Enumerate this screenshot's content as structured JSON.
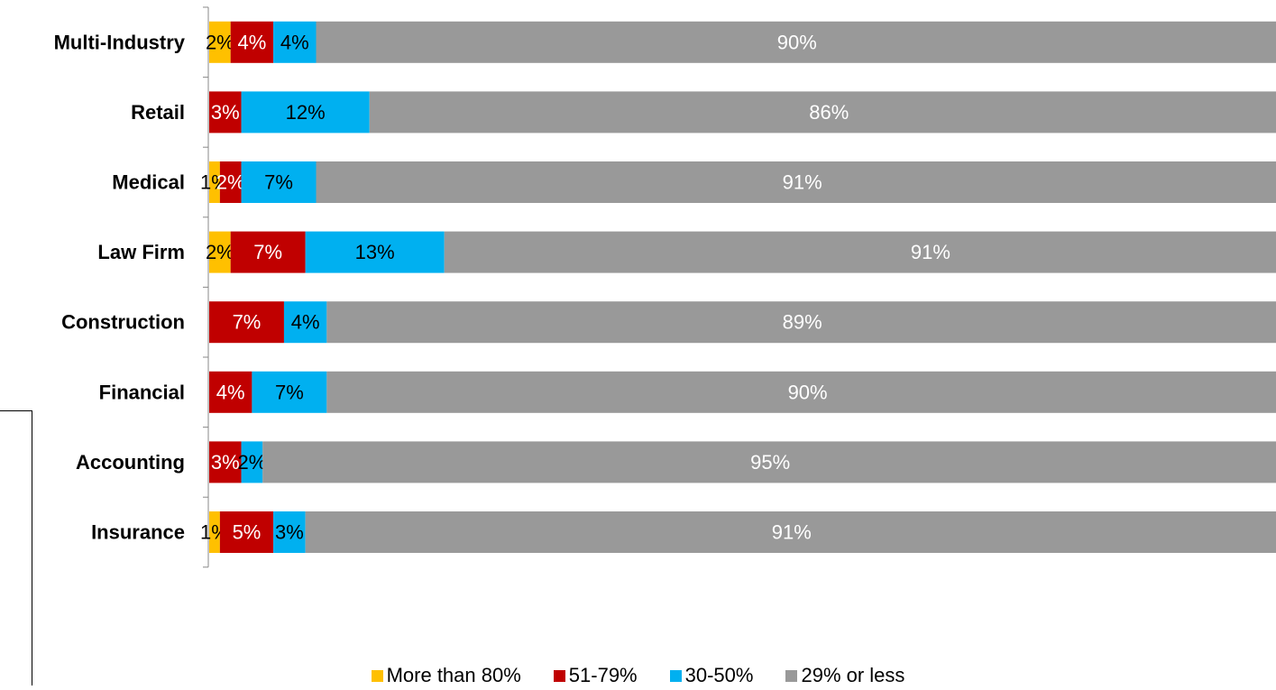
{
  "chart_data": {
    "type": "bar",
    "orientation": "horizontal",
    "stacked": true,
    "categories": [
      "Multi-Industry",
      "Retail",
      "Medical",
      "Law Firm",
      "Construction",
      "Financial",
      "Accounting",
      "Insurance"
    ],
    "series": [
      {
        "name": "More than 80%",
        "color": "#FFC000",
        "values": [
          2,
          0,
          1,
          2,
          0,
          0,
          0,
          1
        ],
        "labels": [
          "2%",
          "",
          "1%",
          "2%",
          "",
          "",
          "",
          "1%"
        ]
      },
      {
        "name": "51-79%",
        "color": "#C00000",
        "values": [
          4,
          3,
          2,
          7,
          7,
          4,
          3,
          5
        ],
        "labels": [
          "4%",
          "3%",
          "2%",
          "7%",
          "7%",
          "4%",
          "3%",
          "5%"
        ]
      },
      {
        "name": "30-50%",
        "color": "#00B0F0",
        "values": [
          4,
          12,
          7,
          13,
          4,
          7,
          2,
          3
        ],
        "labels": [
          "4%",
          "12%",
          "7%",
          "13%",
          "4%",
          "7%",
          "2%",
          "3%"
        ]
      },
      {
        "name": "29% or less",
        "color": "#999999",
        "values": [
          90,
          86,
          91,
          91,
          89,
          90,
          95,
          91
        ],
        "labels": [
          "90%",
          "86%",
          "91%",
          "91%",
          "89%",
          "90%",
          "95%",
          "91%"
        ]
      }
    ],
    "title": "",
    "xlabel": "",
    "ylabel": "",
    "grid": false,
    "legend_position": "bottom"
  }
}
